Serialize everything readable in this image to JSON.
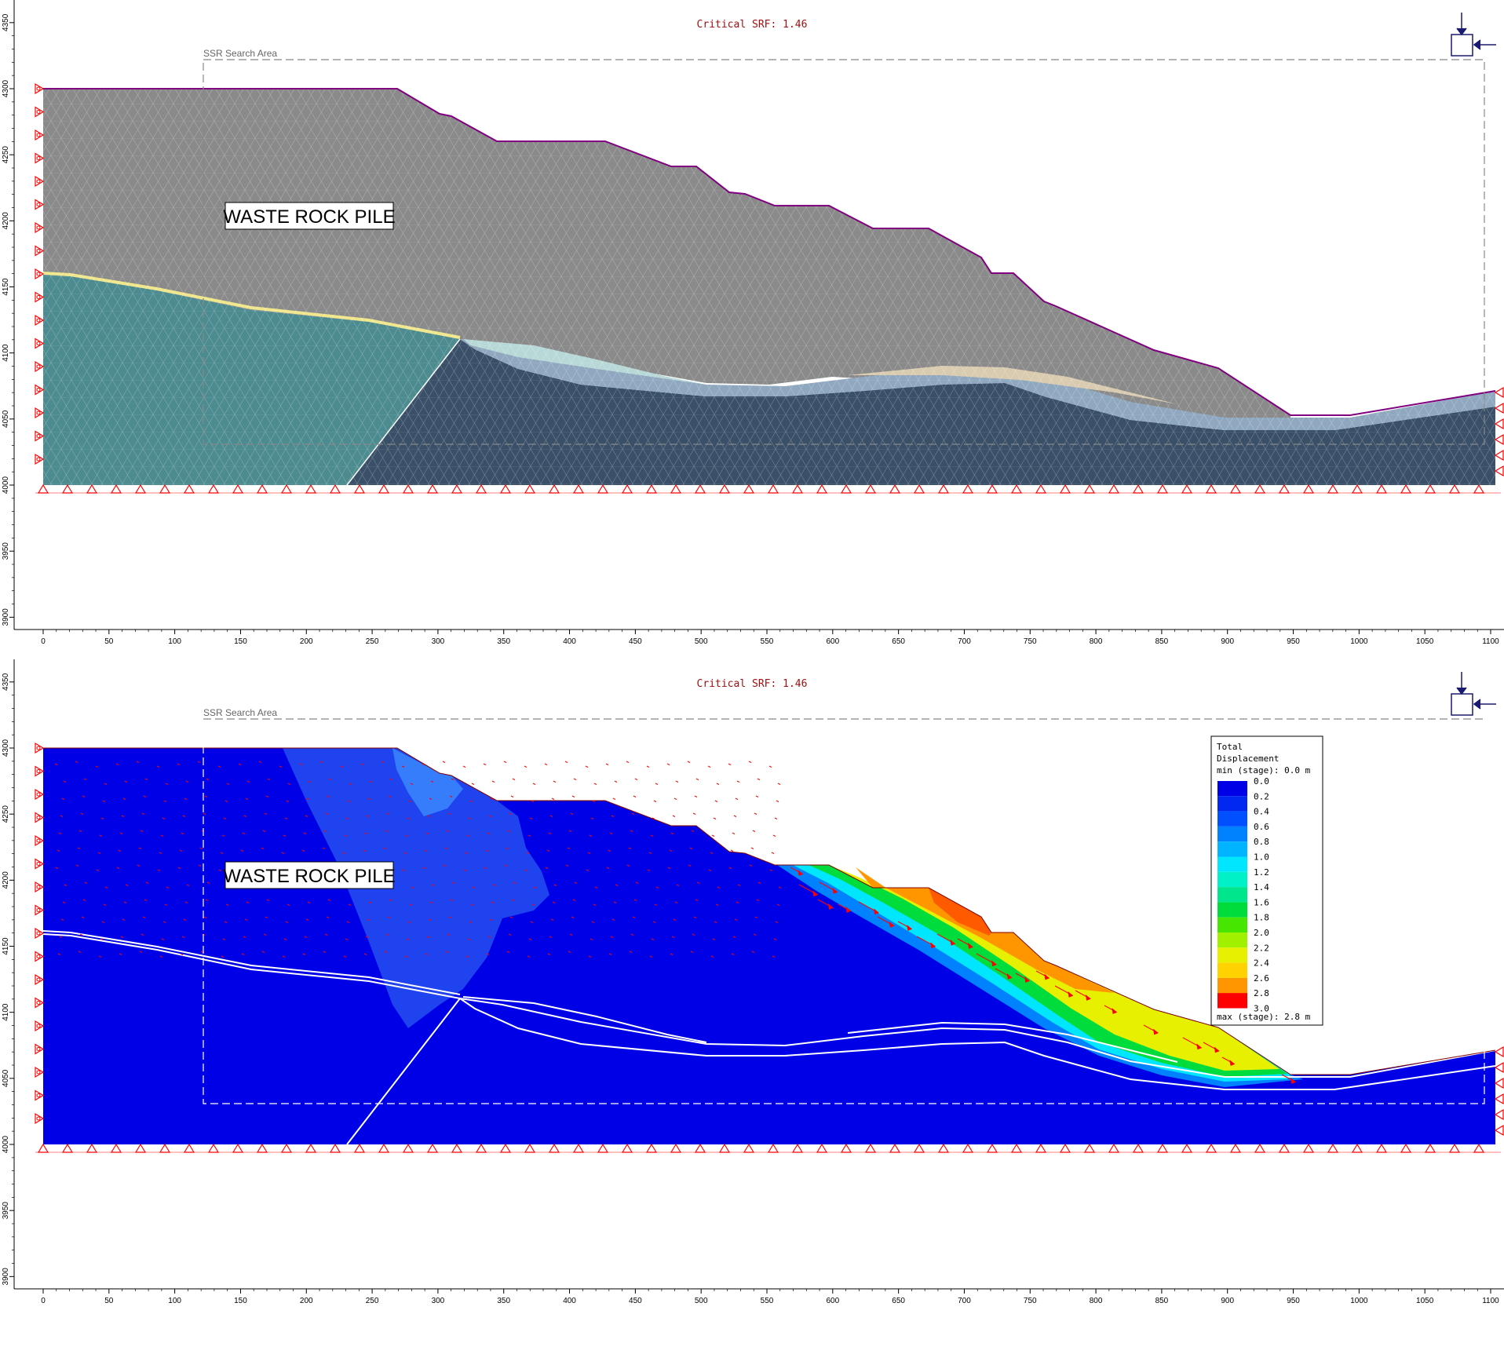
{
  "panels": [
    {
      "id": "mesh",
      "title": "Critical SRF: 1.46",
      "search_area_label": "SSR Search Area",
      "material_label": "WASTE ROCK PILE"
    },
    {
      "id": "displacement",
      "title": "Critical SRF: 1.46",
      "search_area_label": "SSR Search Area",
      "material_label": "WASTE ROCK PILE",
      "legend": {
        "title_line1": "Total",
        "title_line2": "Displacement",
        "min_text": "min (stage): 0.0 m",
        "max_text": "max (stage): 2.8 m",
        "values": [
          "0.0",
          "0.2",
          "0.4",
          "0.6",
          "0.8",
          "1.0",
          "1.2",
          "1.4",
          "1.6",
          "1.8",
          "2.0",
          "2.2",
          "2.4",
          "2.6",
          "2.8",
          "3.0"
        ],
        "colors": [
          "#0000e6",
          "#0028f0",
          "#0050ff",
          "#0082ff",
          "#00b4ff",
          "#00e6ff",
          "#00f0c8",
          "#00e68c",
          "#00dc3c",
          "#46e600",
          "#a0f000",
          "#e6f000",
          "#ffd200",
          "#ff9600",
          "#ff5a00",
          "#ff0000"
        ]
      }
    }
  ],
  "axes": {
    "x_ticks": [
      "0",
      "50",
      "100",
      "150",
      "200",
      "250",
      "300",
      "350",
      "400",
      "450",
      "500",
      "550",
      "600",
      "650",
      "700",
      "750",
      "800",
      "850",
      "900",
      "950",
      "1000",
      "1050",
      "1100"
    ],
    "y_ticks": [
      "4350",
      "4300",
      "4250",
      "4200",
      "4150",
      "4100",
      "4050",
      "4000",
      "3950",
      "3900"
    ]
  },
  "colors": {
    "waste_rock": "#8a8a8a",
    "foundation_left": "#4c8b8f",
    "foundation_right": "#3a5068",
    "weak_layer": "#8fa8bf",
    "pale_lens": "#b8d8d8",
    "beige_lens": "#d9cbb0",
    "yellow_seam": "#f0e68c",
    "surface_line": "#800080",
    "support": "#ff0000",
    "background_blue": "#0000e6"
  }
}
